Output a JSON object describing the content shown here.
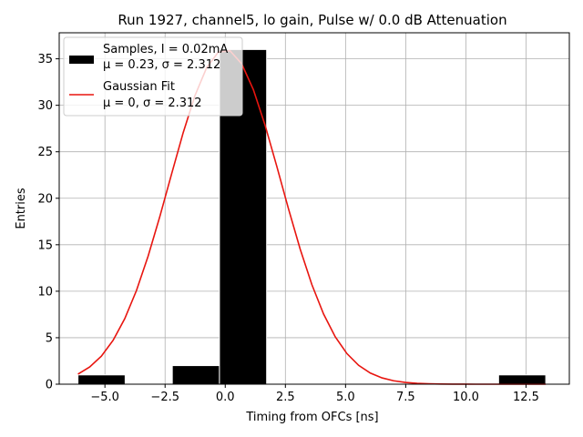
{
  "chart_data": {
    "type": "bar",
    "title": "Run 1927, channel5, lo gain, Pulse w/ 0.0 dB Attenuation",
    "xlabel": "Timing from OFCs [ns]",
    "ylabel": "Entries",
    "xlim": [
      -6.9,
      14.3
    ],
    "ylim": [
      0,
      37.8
    ],
    "xticks": [
      -5.0,
      -2.5,
      0.0,
      2.5,
      5.0,
      7.5,
      10.0,
      12.5
    ],
    "xtick_labels": [
      "−5.0",
      "−2.5",
      "0.0",
      "2.5",
      "5.0",
      "7.5",
      "10.0",
      "12.5"
    ],
    "yticks": [
      0,
      5,
      10,
      15,
      20,
      25,
      30,
      35
    ],
    "ytick_labels": [
      "0",
      "5",
      "10",
      "15",
      "20",
      "25",
      "30",
      "35"
    ],
    "grid": true,
    "legend_position": "top-left",
    "histogram": {
      "name": "Samples",
      "color": "#000000",
      "bins": [
        {
          "x0": -6.12,
          "x1": -4.16,
          "count": 1
        },
        {
          "x0": -2.2,
          "x1": -0.24,
          "count": 2
        },
        {
          "x0": -0.24,
          "x1": 1.72,
          "count": 36
        },
        {
          "x0": 11.36,
          "x1": 13.32,
          "count": 1
        }
      ]
    },
    "fit": {
      "name": "Gaussian Fit",
      "color": "#e8150f",
      "mu": 0,
      "sigma": 2.312,
      "amplitude": 36,
      "x_range": [
        -6.12,
        13.32
      ]
    },
    "legend": [
      {
        "line1": "Samples, I = 0.02mA",
        "line2_mu": "μ = 0.23, ",
        "line2_sigma": "σ = 2.312"
      },
      {
        "line1": "Gaussian Fit",
        "line2_mu": "μ = 0, ",
        "line2_sigma": "σ = 2.312"
      }
    ]
  }
}
